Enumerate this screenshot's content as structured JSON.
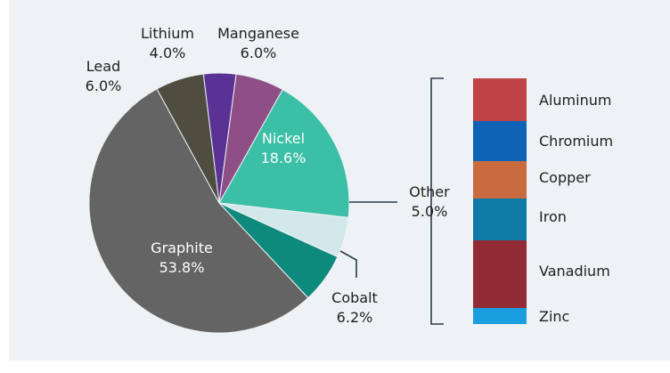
{
  "chart_data": {
    "type": "pie",
    "slices": [
      {
        "label": "Nickel",
        "value_label": "18.6%",
        "value": 18.6,
        "color": "#3bbfa6"
      },
      {
        "label": "Other",
        "value_label": "5.0%",
        "value": 5.0,
        "color": "#d3e8ea"
      },
      {
        "label": "Cobalt",
        "value_label": "6.2%",
        "value": 6.2,
        "color": "#0e8a7d"
      },
      {
        "label": "Graphite",
        "value_label": "53.8%",
        "value": 53.8,
        "color": "#646464"
      },
      {
        "label": "Lead",
        "value_label": "6.0%",
        "value": 6.0,
        "color": "#4e4d40"
      },
      {
        "label": "Lithium",
        "value_label": "4.0%",
        "value": 4.0,
        "color": "#5a3296"
      },
      {
        "label": "Manganese",
        "value_label": "6.0%",
        "value": 6.0,
        "color": "#8e4f86"
      }
    ],
    "other_breakdown": [
      {
        "label": "Aluminum",
        "color": "#bf4345"
      },
      {
        "label": "Chromium",
        "color": "#0e63b6"
      },
      {
        "label": "Copper",
        "color": "#c96b3e"
      },
      {
        "label": "Iron",
        "color": "#0f7aa6"
      },
      {
        "label": "Vanadium",
        "color": "#922b34"
      },
      {
        "label": "Zinc",
        "color": "#1a9ee0"
      }
    ]
  }
}
